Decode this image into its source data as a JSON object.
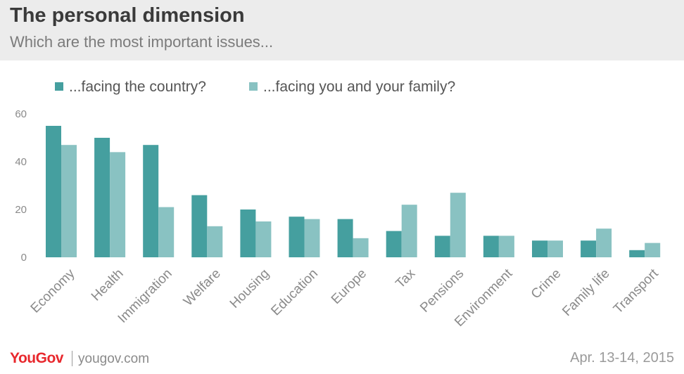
{
  "header": {
    "title": "The personal dimension",
    "subtitle": "Which are the most important issues..."
  },
  "colors": {
    "series_country": "#459f9f",
    "series_family": "#89c2c2",
    "axis_text": "#8a8a8a",
    "header_bg": "#ececec",
    "brand": "#e8282d"
  },
  "chart_data": {
    "type": "bar",
    "title": "The personal dimension",
    "subtitle": "Which are the most important issues...",
    "categories": [
      "Economy",
      "Health",
      "Immigration",
      "Welfare",
      "Housing",
      "Education",
      "Europe",
      "Tax",
      "Pensions",
      "Environment",
      "Crime",
      "Family life",
      "Transport"
    ],
    "series": [
      {
        "name": "...facing the country?",
        "color": "#459f9f",
        "values": [
          55,
          50,
          47,
          26,
          20,
          17,
          16,
          11,
          9,
          9,
          7,
          7,
          3
        ]
      },
      {
        "name": "...facing you and your family?",
        "color": "#89c2c2",
        "values": [
          47,
          44,
          21,
          13,
          15,
          16,
          8,
          22,
          27,
          9,
          7,
          12,
          6
        ]
      }
    ],
    "ylim": [
      0,
      60
    ],
    "yticks": [
      0,
      20,
      40,
      60
    ],
    "xlabel": "",
    "ylabel": "",
    "grid": false,
    "legend": "top-left"
  },
  "footer": {
    "brand": "YouGov",
    "site": "yougov.com",
    "date": "Apr. 13-14, 2015"
  }
}
